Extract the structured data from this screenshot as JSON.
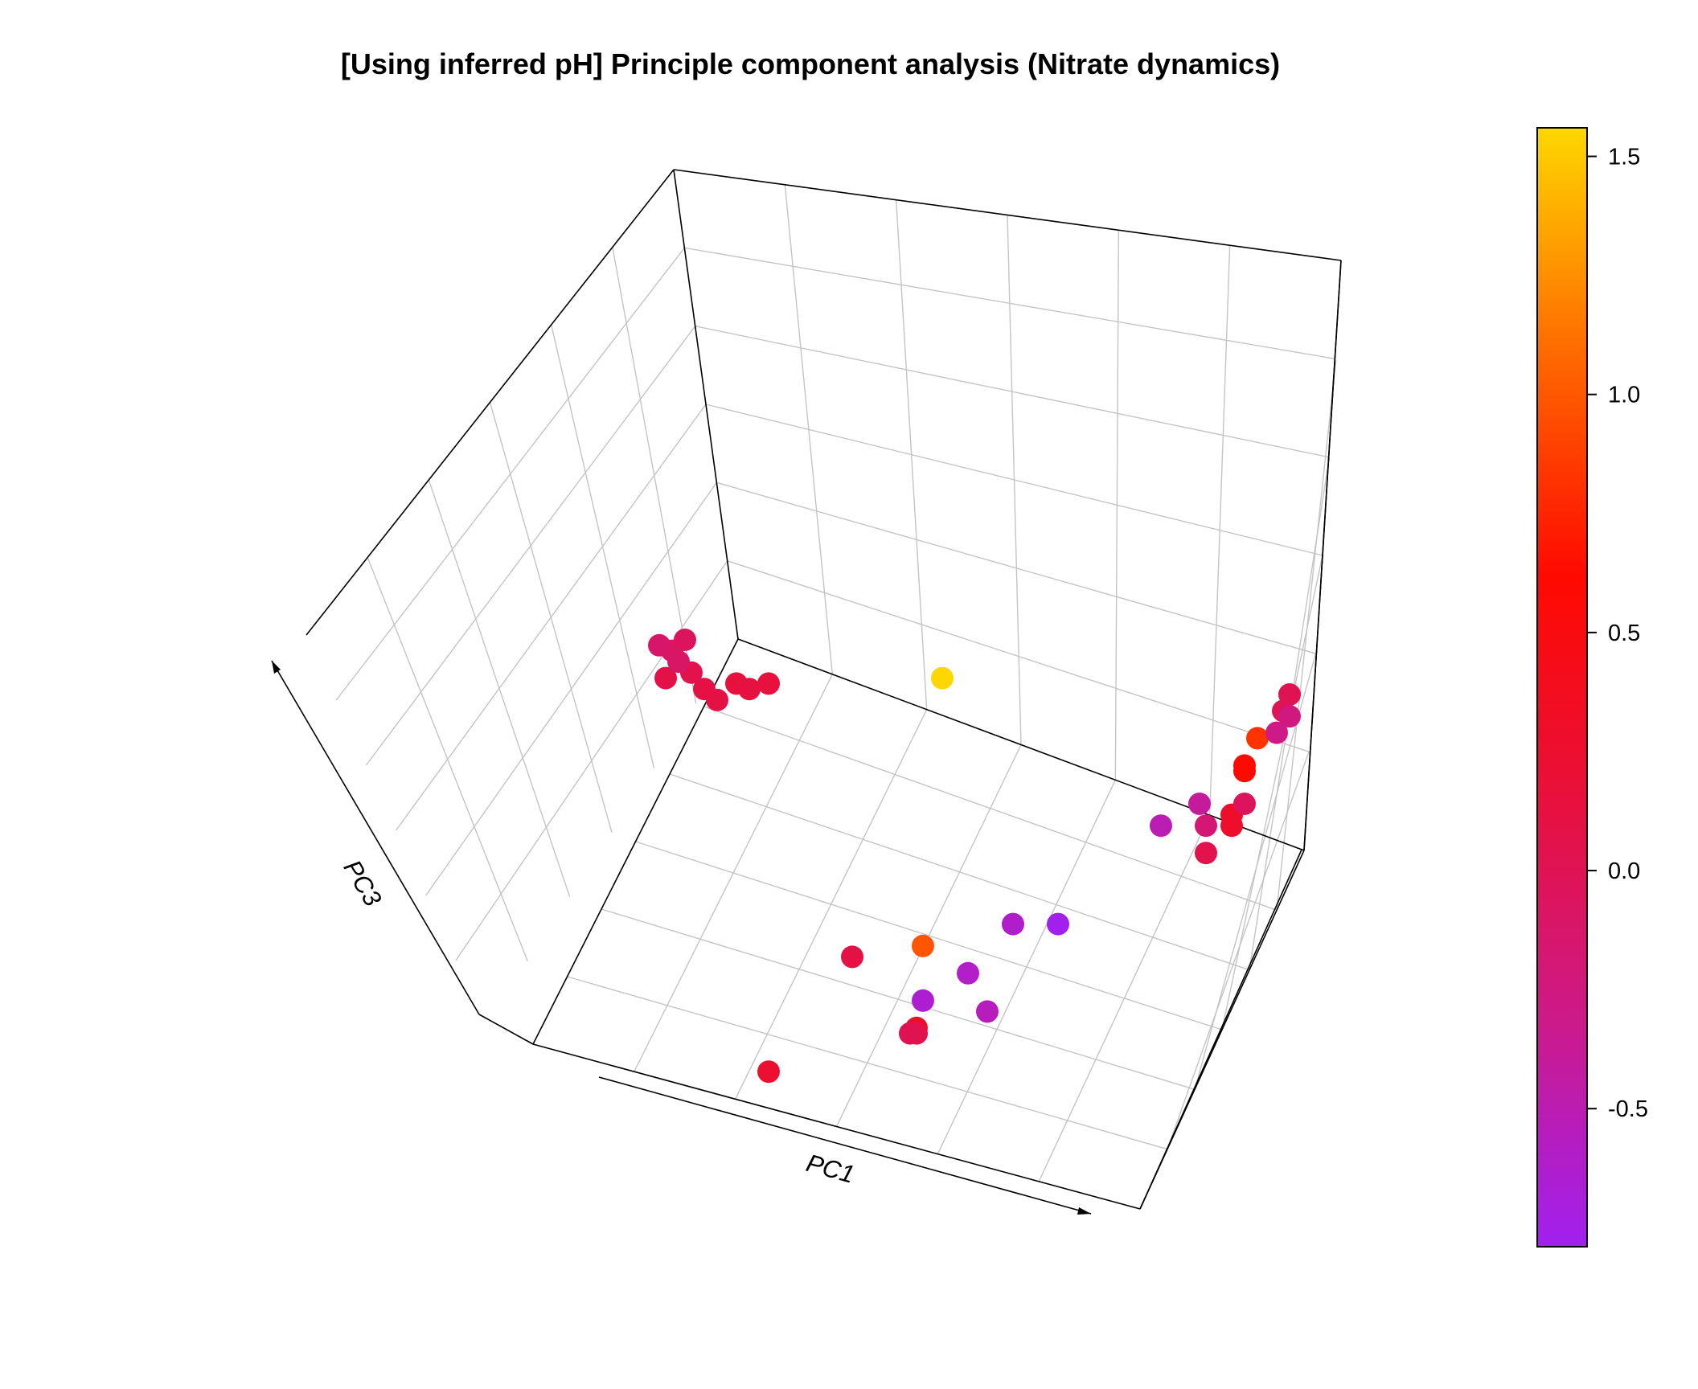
{
  "chart_data": {
    "type": "scatter",
    "title": "[Using inferred pH] Principle component analysis (Nitrate dynamics)",
    "xlabel": "PC1",
    "zlabel": "PC3",
    "grid": true,
    "color_scale": {
      "ticks": [
        "1.5",
        "1.0",
        "0.5",
        "0.0",
        "-0.5"
      ],
      "tick_values": [
        1.5,
        1.0,
        0.5,
        0.0,
        -0.5
      ],
      "range": [
        -0.79,
        1.56
      ],
      "colors": [
        "#a020f0",
        "#cc1a8a",
        "#e8103c",
        "#ff0a00",
        "#ff6a00",
        "#ffd700"
      ],
      "legend_position": "right"
    },
    "points": [
      {
        "u": 0.44,
        "v": 0.27,
        "value": 1.56
      },
      {
        "u": 0.41,
        "v": 0.76,
        "value": 0.98
      },
      {
        "u": 0.93,
        "v": 0.38,
        "value": 0.82
      },
      {
        "u": 0.91,
        "v": 0.43,
        "value": 0.6
      },
      {
        "u": 0.91,
        "v": 0.44,
        "value": 0.6
      },
      {
        "u": 0.17,
        "v": 0.99,
        "value": 0.25
      },
      {
        "u": 0.89,
        "v": 0.52,
        "value": 0.3
      },
      {
        "u": 0.89,
        "v": 0.54,
        "value": 0.28
      },
      {
        "u": 0.4,
        "v": 0.91,
        "value": 0.3
      },
      {
        "u": 0.12,
        "v": 0.28,
        "value": 0.15
      },
      {
        "u": 0.17,
        "v": 0.28,
        "value": 0.15
      },
      {
        "u": 0.14,
        "v": 0.29,
        "value": 0.12
      },
      {
        "u": 0.07,
        "v": 0.29,
        "value": 0.1
      },
      {
        "u": 0.09,
        "v": 0.31,
        "value": 0.1
      },
      {
        "u": 0.01,
        "v": 0.27,
        "value": 0.08
      },
      {
        "u": 0.05,
        "v": 0.26,
        "value": 0.05
      },
      {
        "u": 0.3,
        "v": 0.78,
        "value": 0.1
      },
      {
        "u": 0.4,
        "v": 0.92,
        "value": 0.05
      },
      {
        "u": 0.39,
        "v": 0.92,
        "value": 0.02
      },
      {
        "u": 0.85,
        "v": 0.59,
        "value": 0.05
      },
      {
        "u": 0.98,
        "v": 0.3,
        "value": 0.02
      },
      {
        "u": 0.97,
        "v": 0.33,
        "value": 0.0
      },
      {
        "u": 0.91,
        "v": 0.5,
        "value": -0.05
      },
      {
        "u": 0.02,
        "v": 0.22,
        "value": -0.08
      },
      {
        "u": 0.03,
        "v": 0.24,
        "value": -0.1
      },
      {
        "u": 0.0,
        "v": 0.21,
        "value": -0.12
      },
      {
        "u": 0.04,
        "v": 0.2,
        "value": -0.05
      },
      {
        "u": 0.85,
        "v": 0.54,
        "value": -0.18
      },
      {
        "u": 0.98,
        "v": 0.34,
        "value": -0.25
      },
      {
        "u": 0.96,
        "v": 0.37,
        "value": -0.3
      },
      {
        "u": 0.84,
        "v": 0.5,
        "value": -0.4
      },
      {
        "u": 0.78,
        "v": 0.54,
        "value": -0.5
      },
      {
        "u": 0.51,
        "v": 0.88,
        "value": -0.55
      },
      {
        "u": 0.48,
        "v": 0.81,
        "value": -0.6
      },
      {
        "u": 0.55,
        "v": 0.72,
        "value": -0.62
      },
      {
        "u": 0.41,
        "v": 0.86,
        "value": -0.65
      },
      {
        "u": 0.62,
        "v": 0.72,
        "value": -0.78
      }
    ]
  }
}
